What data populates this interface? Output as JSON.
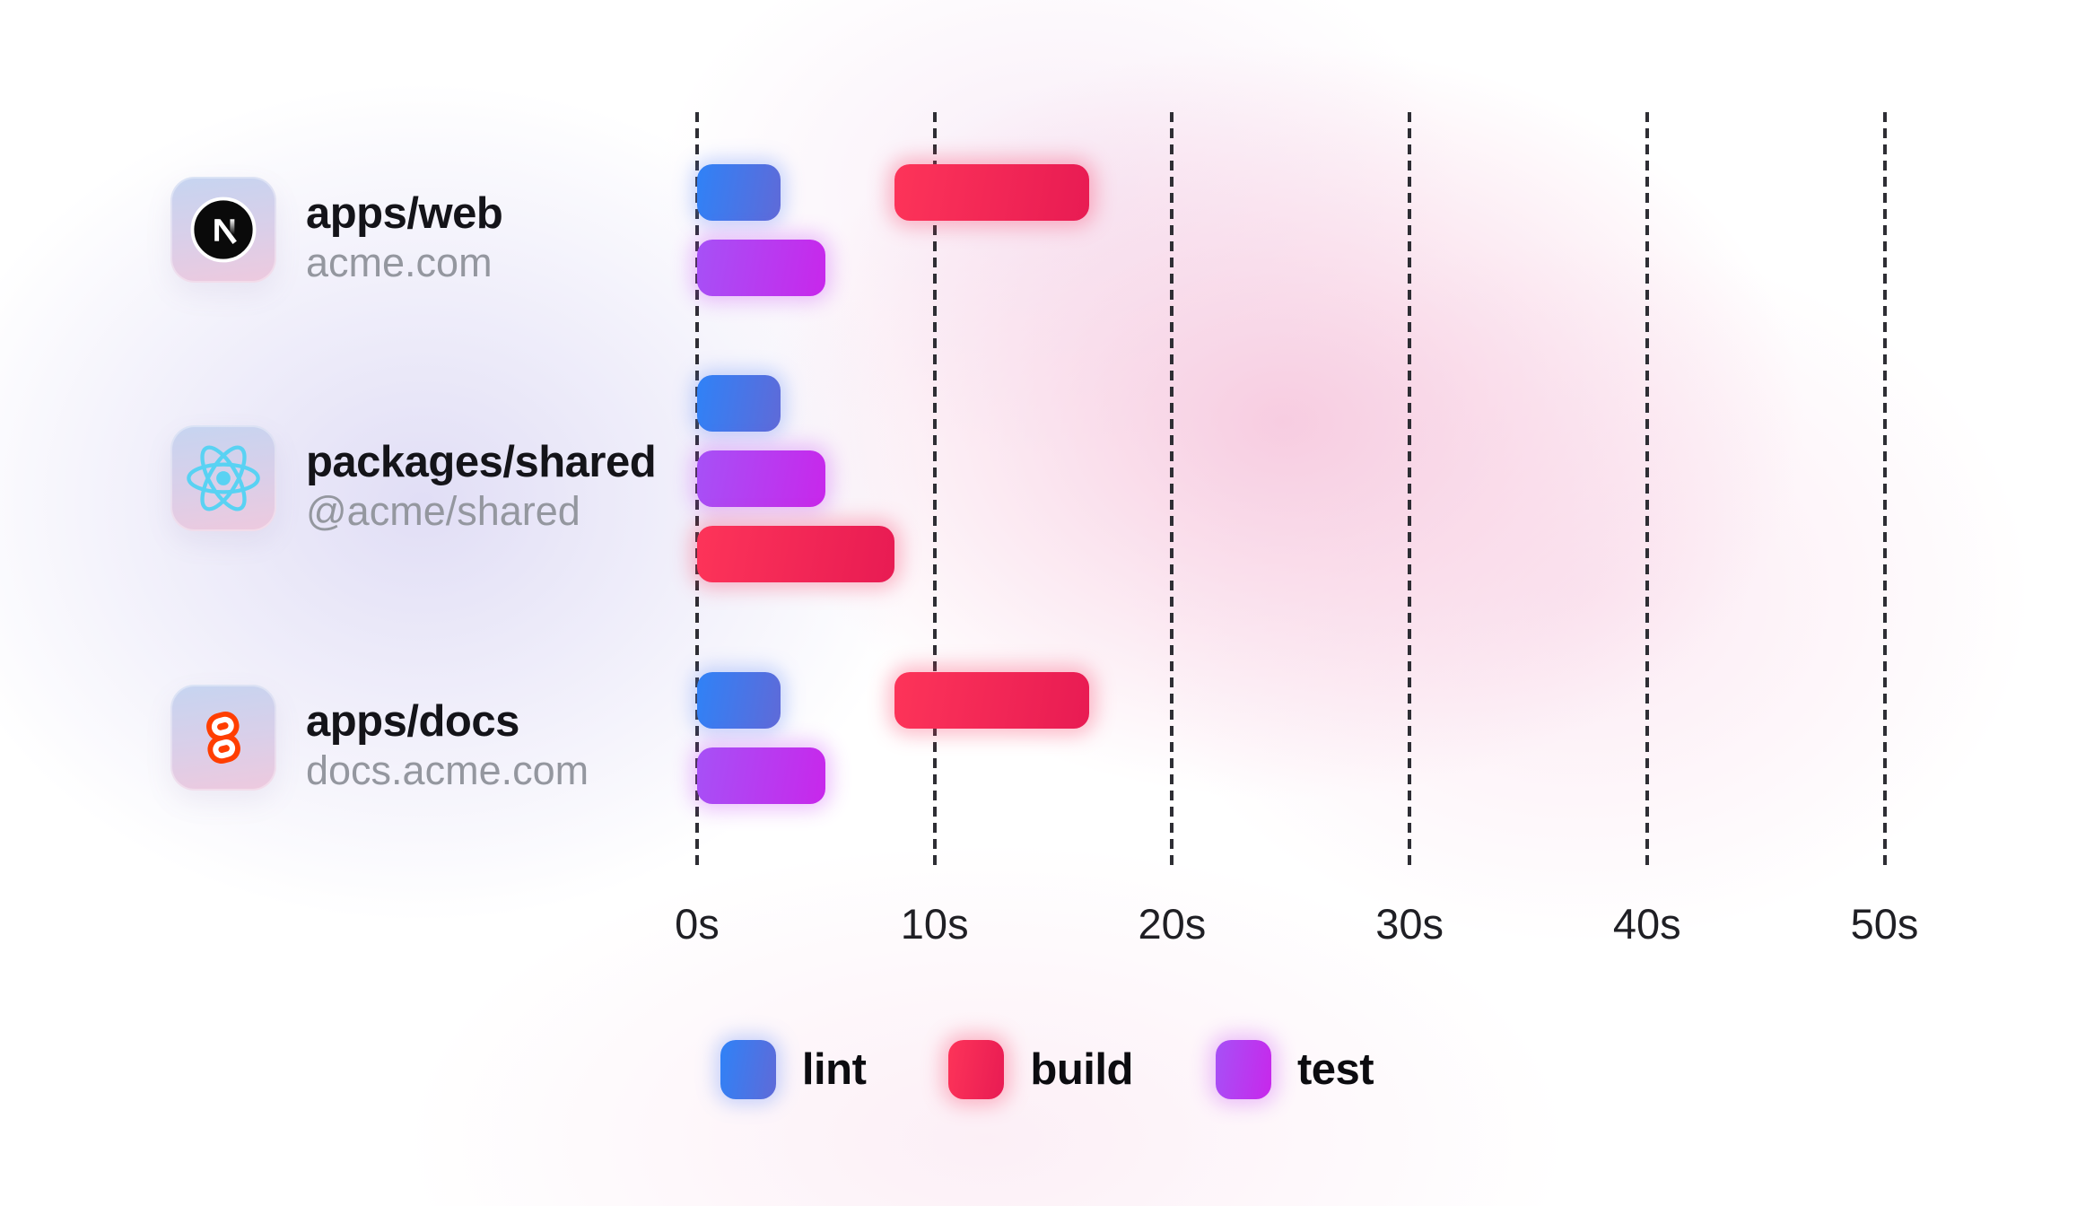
{
  "chart_data": {
    "type": "bar",
    "subtype": "gantt-task-timeline",
    "title": "",
    "x_axis": {
      "unit": "seconds",
      "min": 0,
      "max": 50,
      "ticks": [
        0,
        10,
        20,
        30,
        40,
        50
      ],
      "tick_labels": [
        "0s",
        "10s",
        "20s",
        "30s",
        "40s",
        "50s"
      ],
      "grid": "dashed-vertical",
      "grid_color": "#2e2e34"
    },
    "legend": {
      "position": "bottom-center",
      "items": [
        {
          "key": "lint",
          "label": "lint",
          "color_from": "#2f82f7",
          "color_to": "#5f6ad8"
        },
        {
          "key": "build",
          "label": "build",
          "color_from": "#fd3459",
          "color_to": "#e81b53"
        },
        {
          "key": "test",
          "label": "test",
          "color_from": "#a651f6",
          "color_to": "#c827eb"
        }
      ]
    },
    "icon_colors": {
      "nextjs": "#0a0a0a",
      "react": "#59d2f3",
      "svelte": "#ff3e00"
    },
    "rows": [
      {
        "title": "apps/web",
        "subtitle": "acme.com",
        "icon": "nextjs-logo-icon",
        "tasks": [
          {
            "type": "lint",
            "start": 0,
            "end": 3.5,
            "lane": 0
          },
          {
            "type": "build",
            "start": 8.3,
            "end": 16.5,
            "lane": 0
          },
          {
            "type": "test",
            "start": 0,
            "end": 5.4,
            "lane": 1
          }
        ]
      },
      {
        "title": "packages/shared",
        "subtitle": "@acme/shared",
        "icon": "react-logo-icon",
        "tasks": [
          {
            "type": "lint",
            "start": 0,
            "end": 3.5,
            "lane": 0
          },
          {
            "type": "test",
            "start": 0,
            "end": 5.4,
            "lane": 1
          },
          {
            "type": "build",
            "start": 0,
            "end": 8.3,
            "lane": 2
          }
        ]
      },
      {
        "title": "apps/docs",
        "subtitle": "docs.acme.com",
        "icon": "svelte-logo-icon",
        "tasks": [
          {
            "type": "lint",
            "start": 0,
            "end": 3.5,
            "lane": 0
          },
          {
            "type": "build",
            "start": 8.3,
            "end": 16.5,
            "lane": 0
          },
          {
            "type": "test",
            "start": 0,
            "end": 5.4,
            "lane": 1
          }
        ]
      }
    ]
  }
}
